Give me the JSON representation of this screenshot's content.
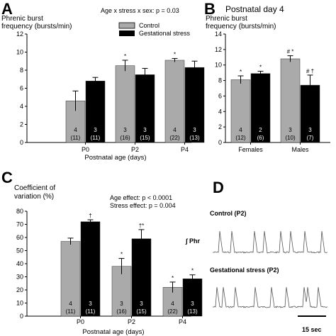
{
  "panels": {
    "A": {
      "letter": "A",
      "ylabel_lines": [
        "Phrenic burst",
        "frequency (bursts/min)"
      ],
      "annotation": "Age x stress x sex: p = 0.03",
      "legend": [
        "Control",
        "Gestational stress"
      ],
      "yticks": [
        "0",
        "2",
        "4",
        "6",
        "8",
        "10",
        "12"
      ],
      "xticks": [
        "P0",
        "P2",
        "P4"
      ],
      "xlabel": "Postnatal age (days)"
    },
    "B": {
      "letter": "B",
      "title": "Postnatal day 4",
      "ylabel_lines": [
        "Phrenic burst",
        "frequency (bursts/min)"
      ],
      "yticks": [
        "0",
        "2",
        "4",
        "6",
        "8",
        "10",
        "12",
        "14"
      ],
      "xticks": [
        "Females",
        "Males"
      ]
    },
    "C": {
      "letter": "C",
      "ylabel_lines": [
        "Coefficient of",
        "variation (%)"
      ],
      "annotation_lines": [
        "Age effect: p < 0.0001",
        "Stress effect: p = 0.004"
      ],
      "yticks": [
        "0",
        "10",
        "20",
        "30",
        "40",
        "50",
        "60",
        "70",
        "80"
      ],
      "xticks": [
        "P0",
        "P2",
        "P4"
      ],
      "xlabel": "Postnatal age (days)"
    },
    "D": {
      "letter": "D",
      "trace1_title": "Control (P2)",
      "trace2_title": "Gestational stress (P2)",
      "trace_label": "∫ Phr",
      "scale_label": "15 sec"
    }
  },
  "colors": {
    "control": "#aaaaaa",
    "stress": "#000000"
  },
  "chart_data": [
    {
      "panel": "A",
      "type": "bar",
      "ylim": [
        0,
        12
      ],
      "ylabel": "Phrenic burst frequency (bursts/min)",
      "xlabel": "Postnatal age (days)",
      "categories": [
        "P0",
        "P2",
        "P4"
      ],
      "series": [
        {
          "name": "Control",
          "values": [
            4.6,
            8.5,
            9.1
          ],
          "errors": [
            1.1,
            0.6,
            0.2
          ],
          "counts": [
            [
              "4",
              "(11)"
            ],
            [
              "3",
              "(16)"
            ],
            [
              "4",
              "(22)"
            ]
          ],
          "marks": [
            "",
            "*",
            "*"
          ]
        },
        {
          "name": "Gestational stress",
          "values": [
            6.8,
            7.5,
            8.3
          ],
          "errors": [
            0.4,
            0.7,
            0.7
          ],
          "counts": [
            [
              "3",
              "(11)"
            ],
            [
              "3",
              "(15)"
            ],
            [
              "3",
              "(13)"
            ]
          ],
          "marks": [
            "",
            "",
            ""
          ]
        }
      ]
    },
    {
      "panel": "B",
      "type": "bar",
      "ylim": [
        0,
        14
      ],
      "ylabel": "Phrenic burst frequency (bursts/min)",
      "categories": [
        "Females",
        "Males"
      ],
      "series": [
        {
          "name": "Control",
          "values": [
            8.1,
            10.8
          ],
          "errors": [
            0.5,
            0.4
          ],
          "counts": [
            [
              "4",
              "(12)"
            ],
            [
              "3",
              "(10)"
            ]
          ],
          "marks": [
            "*",
            "# *"
          ]
        },
        {
          "name": "Gestational stress",
          "values": [
            8.9,
            7.4
          ],
          "errors": [
            0.3,
            1.3
          ],
          "counts": [
            [
              "2",
              "(6)"
            ],
            [
              "3",
              "(7)"
            ]
          ],
          "marks": [
            "*",
            "# †"
          ]
        }
      ]
    },
    {
      "panel": "C",
      "type": "bar",
      "ylim": [
        0,
        80
      ],
      "ylabel": "Coefficient of variation (%)",
      "xlabel": "Postnatal age (days)",
      "categories": [
        "P0",
        "P2",
        "P4"
      ],
      "series": [
        {
          "name": "Control",
          "values": [
            57,
            38,
            22
          ],
          "errors": [
            2.5,
            6,
            4
          ],
          "counts": [
            [
              "4",
              "(11)"
            ],
            [
              "3",
              "(16)"
            ],
            [
              "4",
              "(22)"
            ]
          ],
          "marks": [
            "",
            "*",
            "*"
          ]
        },
        {
          "name": "Gestational stress",
          "values": [
            72,
            59,
            28.5
          ],
          "errors": [
            1.5,
            7,
            3
          ],
          "counts": [
            [
              "3",
              "(11)"
            ],
            [
              "3",
              "(15)"
            ],
            [
              "3",
              "(13)"
            ]
          ],
          "marks": [
            "†",
            "†*",
            "*"
          ]
        }
      ]
    }
  ]
}
